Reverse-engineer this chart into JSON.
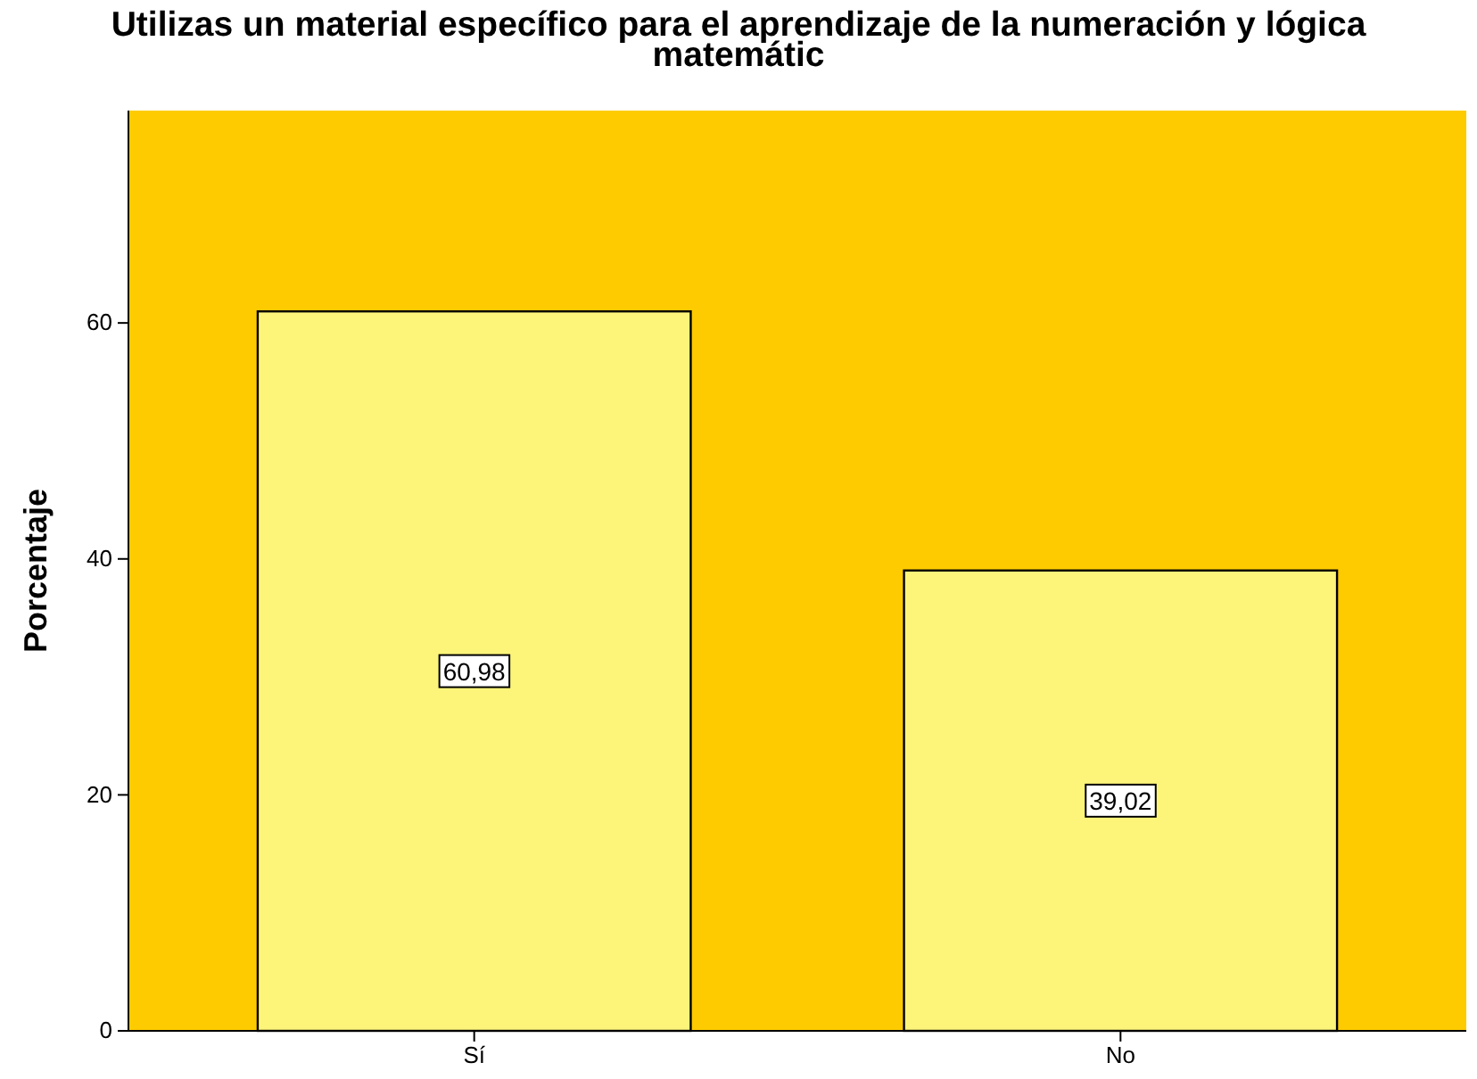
{
  "chart_data": {
    "type": "bar",
    "title": "Utilizas un material específico para el aprendizaje de la numeración y lógica matemátic",
    "ylabel": "Porcentaje",
    "categories": [
      "Sí",
      "No"
    ],
    "values": [
      60.98,
      39.02
    ],
    "value_labels": [
      "60,98",
      "39,02"
    ],
    "color": "#fdf57a",
    "ylim": [
      0,
      78
    ],
    "yticks": [
      0,
      20,
      40,
      60
    ],
    "grid": false
  }
}
